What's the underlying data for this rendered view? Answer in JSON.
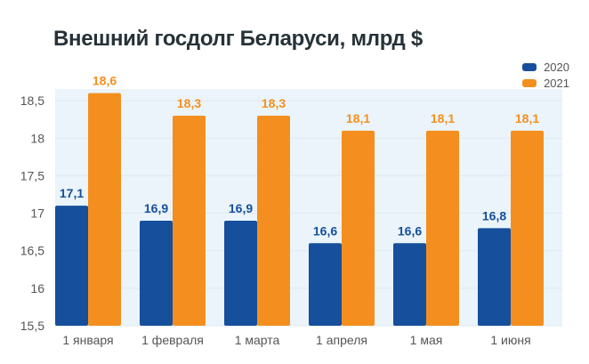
{
  "chart_data": {
    "type": "bar",
    "title": "Внешний госдолг Беларуси, млрд $",
    "xlabel": "",
    "ylabel": "",
    "ylim": [
      15.5,
      18.8
    ],
    "yticks": [
      "15,5",
      "16",
      "16,5",
      "17",
      "17,5",
      "18",
      "18,5"
    ],
    "ytick_values": [
      15.5,
      16,
      16.5,
      17,
      17.5,
      18,
      18.5
    ],
    "grid": true,
    "legend_position": "top-right",
    "categories": [
      "1 января",
      "1 февраля",
      "1 марта",
      "1 апреля",
      "1 мая",
      "1 июня"
    ],
    "series": [
      {
        "name": "2020",
        "color": "#164f9b",
        "values": [
          17.1,
          16.9,
          16.9,
          16.6,
          16.6,
          16.8
        ],
        "labels": [
          "17,1",
          "16,9",
          "16,9",
          "16,6",
          "16,6",
          "16,8"
        ]
      },
      {
        "name": "2021",
        "color": "#f48f1f",
        "values": [
          18.6,
          18.3,
          18.3,
          18.1,
          18.1,
          18.1
        ],
        "labels": [
          "18,6",
          "18,3",
          "18,3",
          "18,1",
          "18,1",
          "18,1"
        ]
      }
    ]
  }
}
